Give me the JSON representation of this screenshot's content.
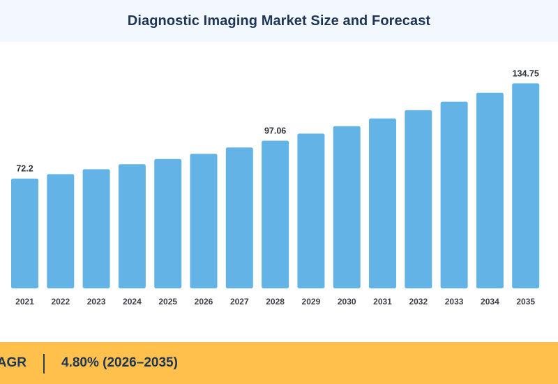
{
  "header": {
    "title": "Diagnostic Imaging Market Size and Forecast"
  },
  "footer": {
    "cagr_label": "CAGR",
    "cagr_value": "4.80% (2026–2035)"
  },
  "colors": {
    "bar": "#63b3e6",
    "header_bg": "#f3f8fe",
    "footer_bg": "#ffc04c",
    "title_text": "#1e3557"
  },
  "chart_data": {
    "type": "bar",
    "title": "Diagnostic Imaging Market Size and Forecast",
    "xlabel": "",
    "ylabel": "",
    "categories": [
      "2021",
      "2022",
      "2023",
      "2024",
      "2025",
      "2026",
      "2027",
      "2028",
      "2029",
      "2030",
      "2031",
      "2032",
      "2033",
      "2034",
      "2035"
    ],
    "values": [
      72.2,
      75.1,
      78.3,
      81.6,
      85.0,
      88.4,
      92.6,
      97.06,
      101.7,
      106.6,
      111.7,
      117.1,
      122.7,
      128.6,
      134.75
    ],
    "data_labels": [
      {
        "index": 0,
        "text": "72.2"
      },
      {
        "index": 7,
        "text": "97.06"
      },
      {
        "index": 14,
        "text": "134.75"
      }
    ],
    "ylim": [
      0,
      140
    ],
    "grid": false,
    "legend": "none"
  }
}
